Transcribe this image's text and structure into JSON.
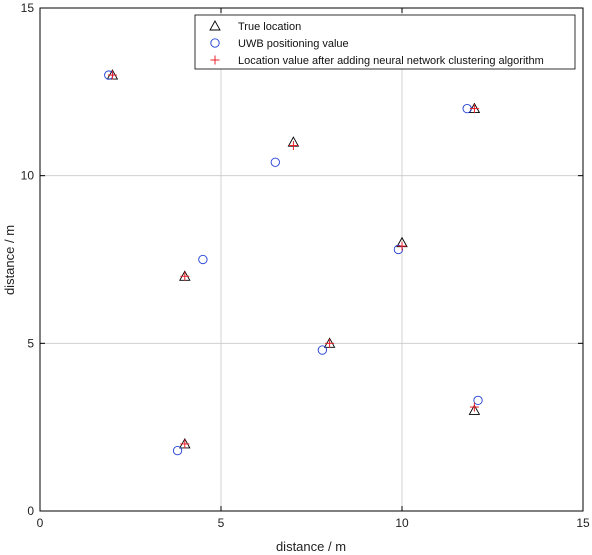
{
  "chart_data": {
    "type": "scatter",
    "xlabel": "distance / m",
    "ylabel": "distance / m",
    "xlim": [
      0,
      15
    ],
    "ylim": [
      0,
      15
    ],
    "xticks": [
      "0",
      "5",
      "10",
      "15"
    ],
    "yticks": [
      "0",
      "5",
      "10",
      "15"
    ],
    "grid": true,
    "legend_position": "top-right",
    "series": [
      {
        "name": "True location",
        "marker": "triangle",
        "color": "#000000",
        "points": [
          [
            2,
            13
          ],
          [
            7,
            11
          ],
          [
            12,
            12
          ],
          [
            4,
            7
          ],
          [
            10,
            8
          ],
          [
            8,
            5
          ],
          [
            4,
            2
          ],
          [
            12,
            3
          ]
        ]
      },
      {
        "name": "UWB positioning value",
        "marker": "circle",
        "color": "#1f3fd6",
        "points": [
          [
            1.9,
            13.0
          ],
          [
            6.5,
            10.4
          ],
          [
            11.8,
            12.0
          ],
          [
            4.5,
            7.5
          ],
          [
            9.9,
            7.8
          ],
          [
            7.8,
            4.8
          ],
          [
            3.8,
            1.8
          ],
          [
            12.1,
            3.3
          ]
        ]
      },
      {
        "name": "Location value after adding neural network clustering algorithm",
        "marker": "plus",
        "color": "#e8202a",
        "points": [
          [
            2.0,
            13.0
          ],
          [
            7.0,
            10.9
          ],
          [
            12.0,
            12.0
          ],
          [
            4.0,
            7.0
          ],
          [
            10.0,
            7.9
          ],
          [
            8.0,
            5.0
          ],
          [
            4.0,
            2.0
          ],
          [
            12.0,
            3.1
          ]
        ]
      }
    ]
  }
}
